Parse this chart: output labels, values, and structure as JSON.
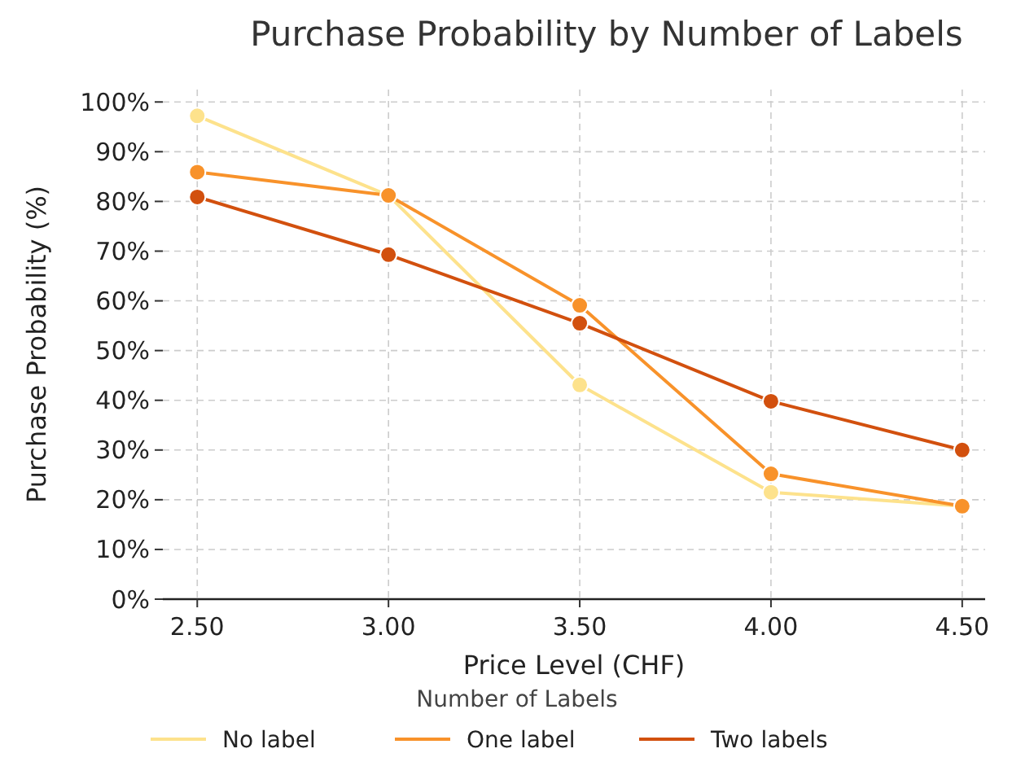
{
  "chart_data": {
    "type": "line",
    "title": "Purchase Probability by Number of Labels",
    "xlabel": "Price Level (CHF)",
    "ylabel": "Purchase Probability (%)",
    "legend_title": "Number of Labels",
    "x": [
      2.5,
      3.0,
      3.5,
      4.0,
      4.5
    ],
    "series": [
      {
        "name": "No label",
        "color": "#fde28c",
        "values": [
          97.2,
          81.2,
          43.1,
          21.5,
          18.7
        ]
      },
      {
        "name": "One label",
        "color": "#f8922a",
        "values": [
          85.9,
          81.2,
          59.1,
          25.2,
          18.7
        ]
      },
      {
        "name": "Two labels",
        "color": "#d2500e",
        "values": [
          80.9,
          69.3,
          55.5,
          39.8,
          30
        ]
      }
    ],
    "xlim": [
      2.41,
      4.56
    ],
    "ylim": [
      0,
      102.5
    ],
    "xticks": [
      {
        "value": 2.5,
        "label": "2.50"
      },
      {
        "value": 3,
        "label": "3.00"
      },
      {
        "value": 3.5,
        "label": "3.50"
      },
      {
        "value": 4,
        "label": "4.00"
      },
      {
        "value": 4.5,
        "label": "4.50"
      }
    ],
    "yticks": [
      {
        "value": 0,
        "label": "0%"
      },
      {
        "value": 10,
        "label": "10%"
      },
      {
        "value": 20,
        "label": "20%"
      },
      {
        "value": 30,
        "label": "30%"
      },
      {
        "value": 40,
        "label": "40%"
      },
      {
        "value": 50,
        "label": "50%"
      },
      {
        "value": 60,
        "label": "60%"
      },
      {
        "value": 70,
        "label": "70%"
      },
      {
        "value": 80,
        "label": "80%"
      },
      {
        "value": 90,
        "label": "90%"
      },
      {
        "value": 100,
        "label": "100%"
      }
    ],
    "grid": true,
    "legend": "bottom",
    "marker": "circle",
    "line_style": "solid"
  }
}
